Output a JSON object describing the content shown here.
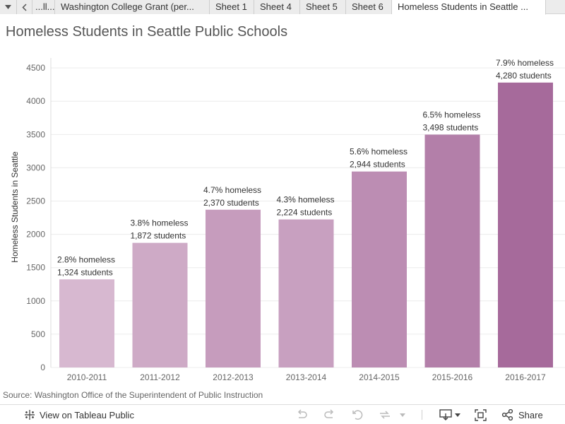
{
  "tabs": {
    "menu_icon": "triangle-down-icon",
    "prev_icon": "chevron-left-icon",
    "items": [
      {
        "label": "...ll..."
      },
      {
        "label": "Washington College Grant (per..."
      },
      {
        "label": "Sheet 1"
      },
      {
        "label": "Sheet 4"
      },
      {
        "label": "Sheet 5"
      },
      {
        "label": "Sheet 6"
      },
      {
        "label": "Homeless Students in Seattle ..."
      }
    ],
    "active_index": 6
  },
  "colors": {
    "bar_light": "#d7b8d0",
    "bar_dark": "#a66a9b",
    "grid": "#ececec",
    "axis_text": "#666666",
    "label_text": "#333333"
  },
  "chart_data": {
    "type": "bar",
    "title": "Homeless Students in Seattle Public Schools",
    "ylabel": "Homeless Students in Seattle",
    "xlabel": "",
    "ylim": [
      0,
      4650
    ],
    "yticks": [
      0,
      500,
      1000,
      1500,
      2000,
      2500,
      3000,
      3500,
      4000,
      4500
    ],
    "grid": true,
    "categories": [
      "2010-2011",
      "2011-2012",
      "2012-2013",
      "2013-2014",
      "2014-2015",
      "2015-2016",
      "2016-2017"
    ],
    "values": [
      1324,
      1872,
      2370,
      2224,
      2944,
      3498,
      4280
    ],
    "data_labels": [
      {
        "line1": "2.8% homeless",
        "line2": "1,324 students"
      },
      {
        "line1": "3.8% homeless",
        "line2": "1,872 students"
      },
      {
        "line1": "4.7% homeless",
        "line2": "2,370 students"
      },
      {
        "line1": "4.3% homeless",
        "line2": "2,224 students"
      },
      {
        "line1": "5.6% homeless",
        "line2": "2,944 students"
      },
      {
        "line1": "6.5% homeless",
        "line2": "3,498 students"
      },
      {
        "line1": "7.9% homeless",
        "line2": "4,280 students"
      }
    ]
  },
  "source": "Source: Washington Office of the Superintendent of Public Instruction",
  "toolbar": {
    "view_label": "View on Tableau Public",
    "view_icon": "tableau-logo-icon",
    "undo_icon": "undo-icon",
    "redo_icon": "redo-icon",
    "revert_icon": "revert-icon",
    "refresh_icon": "refresh-icon",
    "download_icon": "download-icon",
    "fullscreen_icon": "fullscreen-icon",
    "share_icon": "share-icon",
    "share_label": "Share"
  }
}
